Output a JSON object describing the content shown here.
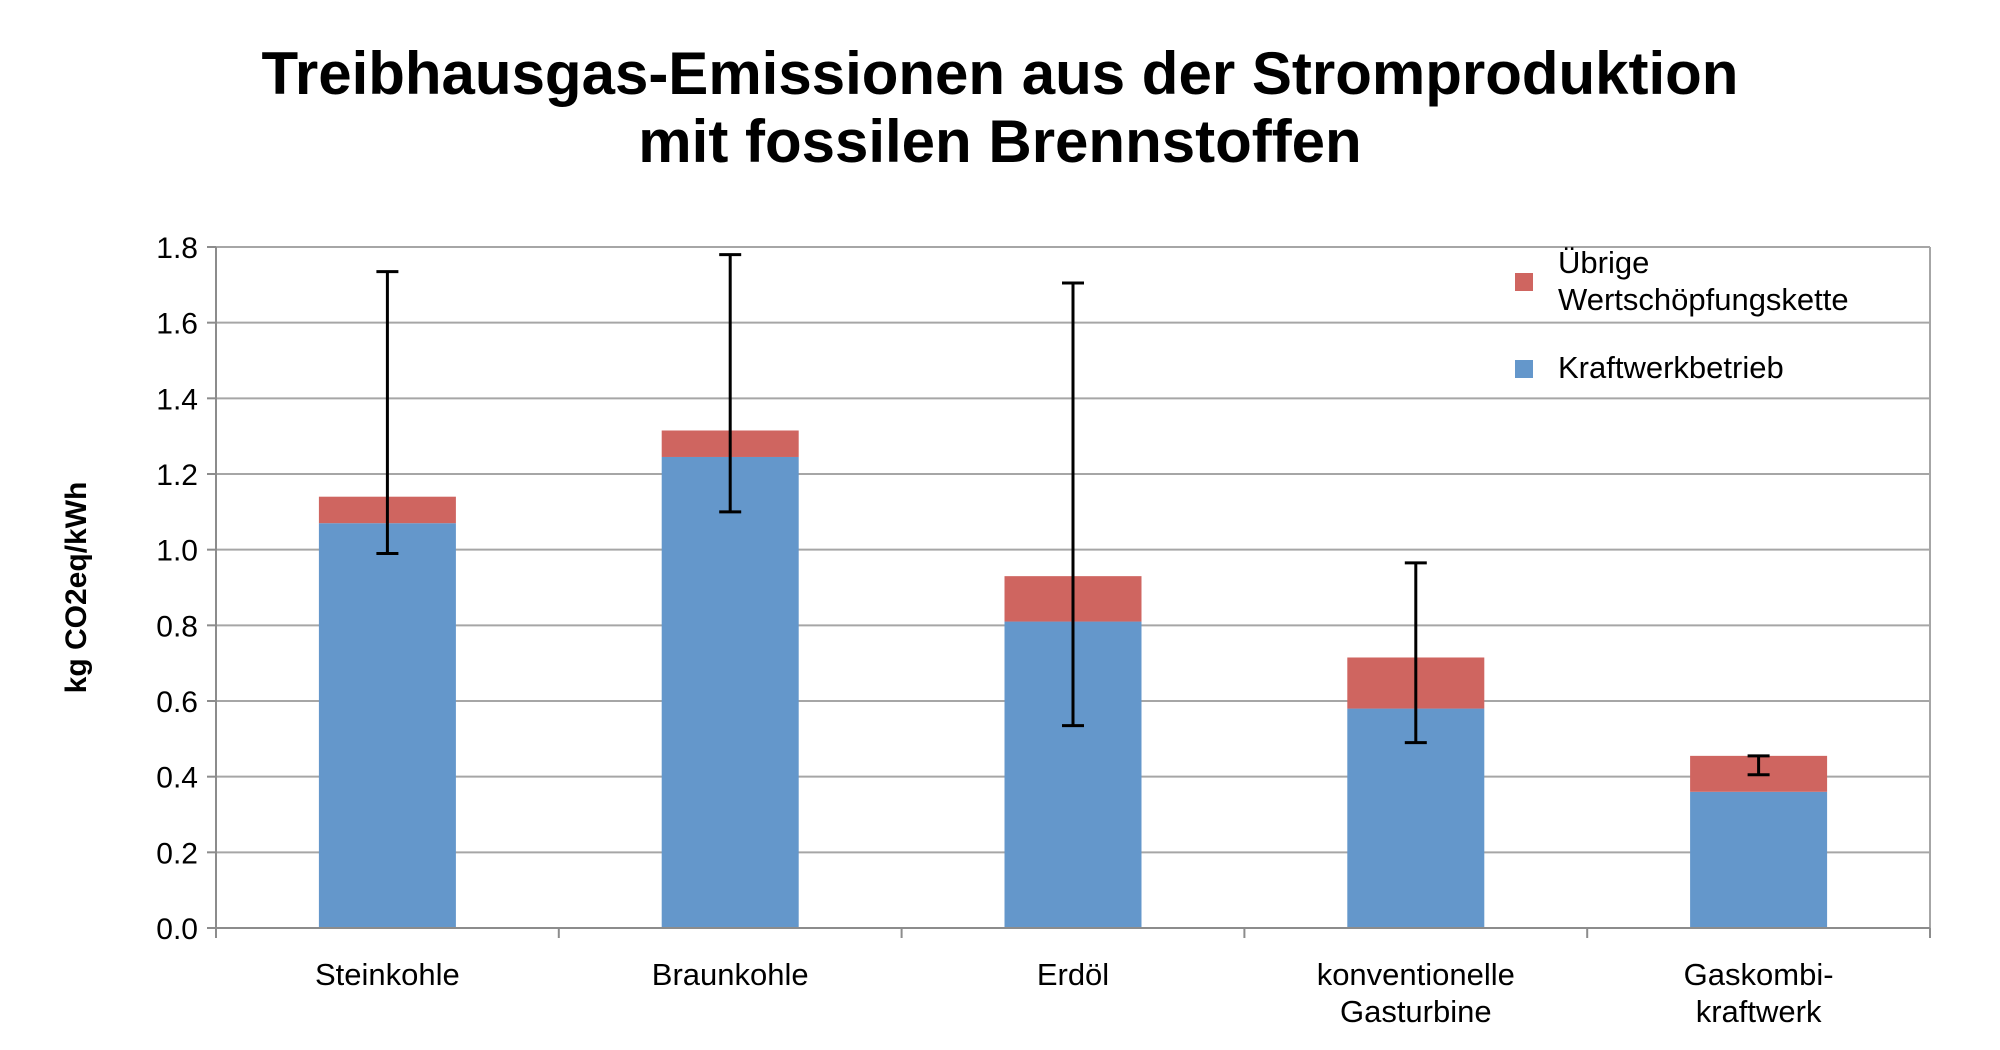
{
  "chart_data": {
    "type": "bar",
    "stacked": true,
    "title": [
      "Treibhausgas-Emissionen aus der Stromproduktion",
      "mit fossilen Brennstoffen"
    ],
    "ylabel": "kg CO2eq/kWh",
    "xlabel": "",
    "ylim": [
      0,
      1.8
    ],
    "yticks": [
      "0.0",
      "0.2",
      "0.4",
      "0.6",
      "0.8",
      "1.0",
      "1.2",
      "1.4",
      "1.6",
      "1.8"
    ],
    "grid": true,
    "legend_position": "top-right",
    "categories": [
      [
        "Steinkohle"
      ],
      [
        "Braunkohle"
      ],
      [
        "Erdöl"
      ],
      [
        "konventionelle",
        "Gasturbine"
      ],
      [
        "Gaskombi-",
        "kraftwerk"
      ]
    ],
    "series": [
      {
        "name": "Kraftwerkbetrieb",
        "color": "#6497cb",
        "values": [
          1.07,
          1.245,
          0.81,
          0.58,
          0.36
        ]
      },
      {
        "name": "Übrige Wertschöpfungskette",
        "color": "#cf6560",
        "values": [
          0.07,
          0.07,
          0.12,
          0.135,
          0.095
        ]
      }
    ],
    "error_bars": [
      {
        "low": 0.99,
        "high": 1.735
      },
      {
        "low": 1.1,
        "high": 1.78
      },
      {
        "low": 0.535,
        "high": 1.705
      },
      {
        "low": 0.49,
        "high": 0.965
      },
      {
        "low": 0.405,
        "high": 0.455
      }
    ],
    "legend": [
      {
        "lines": [
          "Übrige",
          "Wertschöpfungskette"
        ],
        "color": "#cf6560"
      },
      {
        "lines": [
          "Kraftwerkbetrieb"
        ],
        "color": "#6497cb"
      }
    ]
  }
}
